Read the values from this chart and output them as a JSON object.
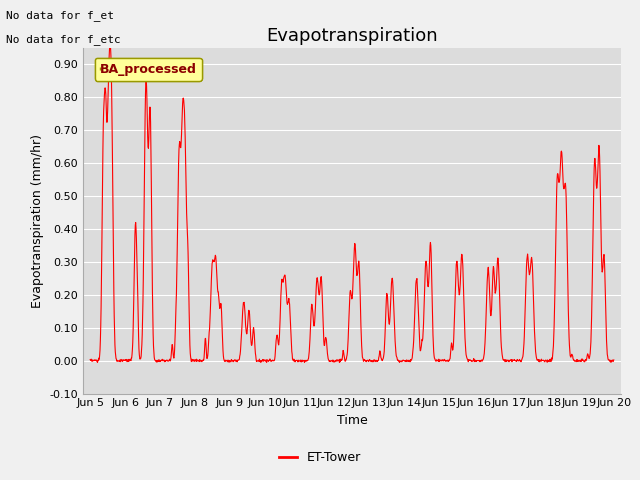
{
  "title": "Evapotranspiration",
  "ylabel": "Evapotranspiration (mm/hr)",
  "xlabel": "Time",
  "ylim": [
    -0.1,
    0.95
  ],
  "yticks": [
    -0.1,
    0.0,
    0.1,
    0.2,
    0.3,
    0.4,
    0.5,
    0.6,
    0.7,
    0.8,
    0.9
  ],
  "line_color": "red",
  "line_width": 0.8,
  "plot_bg_color": "#dcdcdc",
  "fig_bg_color": "#f0f0f0",
  "annotation_text1": "No data for f_et",
  "annotation_text2": "No data for f_etc",
  "legend_label": "BA_processed",
  "legend_bg": "#ffff99",
  "legend_edge": "#999900",
  "bottom_legend_label": "ET-Tower",
  "x_tick_labels": [
    "Jun 5",
    "Jun 6",
    "Jun 7",
    "Jun 8",
    "Jun 9",
    "Jun 10",
    "Jun 11",
    "Jun 12",
    "Jun 13",
    "Jun 14",
    "Jun 15",
    "Jun 16",
    "Jun 17",
    "Jun 18",
    "Jun 19",
    "Jun 20"
  ],
  "title_fontsize": 13,
  "label_fontsize": 9,
  "tick_fontsize": 8,
  "annot_fontsize": 8
}
